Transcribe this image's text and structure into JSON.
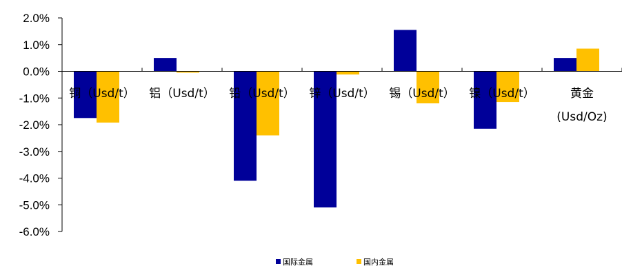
{
  "chart_data": {
    "type": "bar",
    "categories": [
      "铜（Usd/t）",
      "铝（Usd/t）",
      "铅（Usd/t）",
      "锌（Usd/t）",
      "锡（Usd/t）",
      "镍（Usd/t）",
      "黄金（Usd/Oz）"
    ],
    "category_lines": [
      [
        "铜（Usd/t）"
      ],
      [
        "铝（Usd/t）"
      ],
      [
        "铅（Usd/t）"
      ],
      [
        "锌（Usd/t）"
      ],
      [
        "锡（Usd/t）"
      ],
      [
        "镍（Usd/t）"
      ],
      [
        "黄金",
        "(Usd/Oz)"
      ]
    ],
    "series": [
      {
        "name": "国际金属",
        "color": "#000099",
        "values": [
          -1.75,
          0.5,
          -4.1,
          -5.1,
          1.55,
          -2.15,
          0.5
        ]
      },
      {
        "name": "国内金属",
        "color": "#FFC000",
        "values": [
          -1.92,
          -0.05,
          -2.4,
          -0.12,
          -1.2,
          -1.15,
          0.85
        ]
      }
    ],
    "ylim": [
      -6.0,
      2.0
    ],
    "yticks": [
      2.0,
      1.0,
      0.0,
      -1.0,
      -2.0,
      -3.0,
      -4.0,
      -5.0,
      -6.0
    ],
    "ytick_labels": [
      "2.0%",
      "1.0%",
      "0.0%",
      "-1.0%",
      "-2.0%",
      "-3.0%",
      "-4.0%",
      "-5.0%",
      "-6.0%"
    ],
    "title": "",
    "xlabel": "",
    "ylabel": "",
    "grid": false,
    "legend_position": "bottom-center"
  }
}
